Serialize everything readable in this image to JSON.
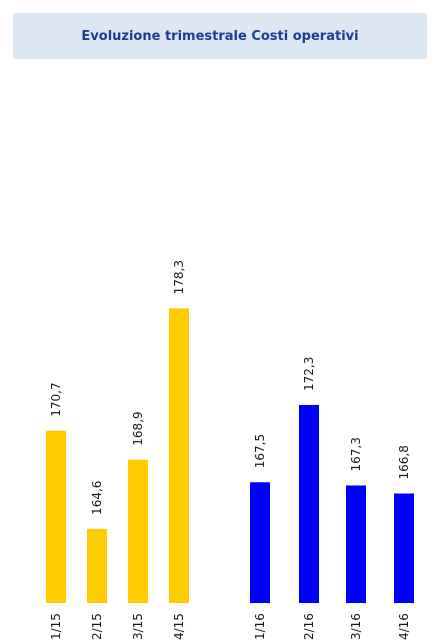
{
  "title": "Evoluzione trimestrale Costi operativi",
  "chart_data": {
    "type": "bar",
    "title": "Evoluzione trimestrale Costi operativi",
    "categories": [
      "1/15",
      "2/15",
      "3/15",
      "4/15",
      "1/16",
      "2/16",
      "3/16",
      "4/16"
    ],
    "series": [
      {
        "values": [
          170.7,
          164.6,
          168.9,
          178.3,
          null,
          null,
          null,
          null
        ],
        "color": "#ffcc00"
      },
      {
        "values": [
          null,
          null,
          null,
          null,
          167.5,
          172.3,
          167.3,
          166.8
        ],
        "color": "#0000ff"
      }
    ],
    "value_labels": [
      "170,7",
      "164,6",
      "168,9",
      "178,3",
      "167,5",
      "172,3",
      "167,3",
      "166,8"
    ],
    "value_label_orientation": "vertical",
    "category_label_orientation": "vertical",
    "grid": false,
    "legend": "none"
  }
}
